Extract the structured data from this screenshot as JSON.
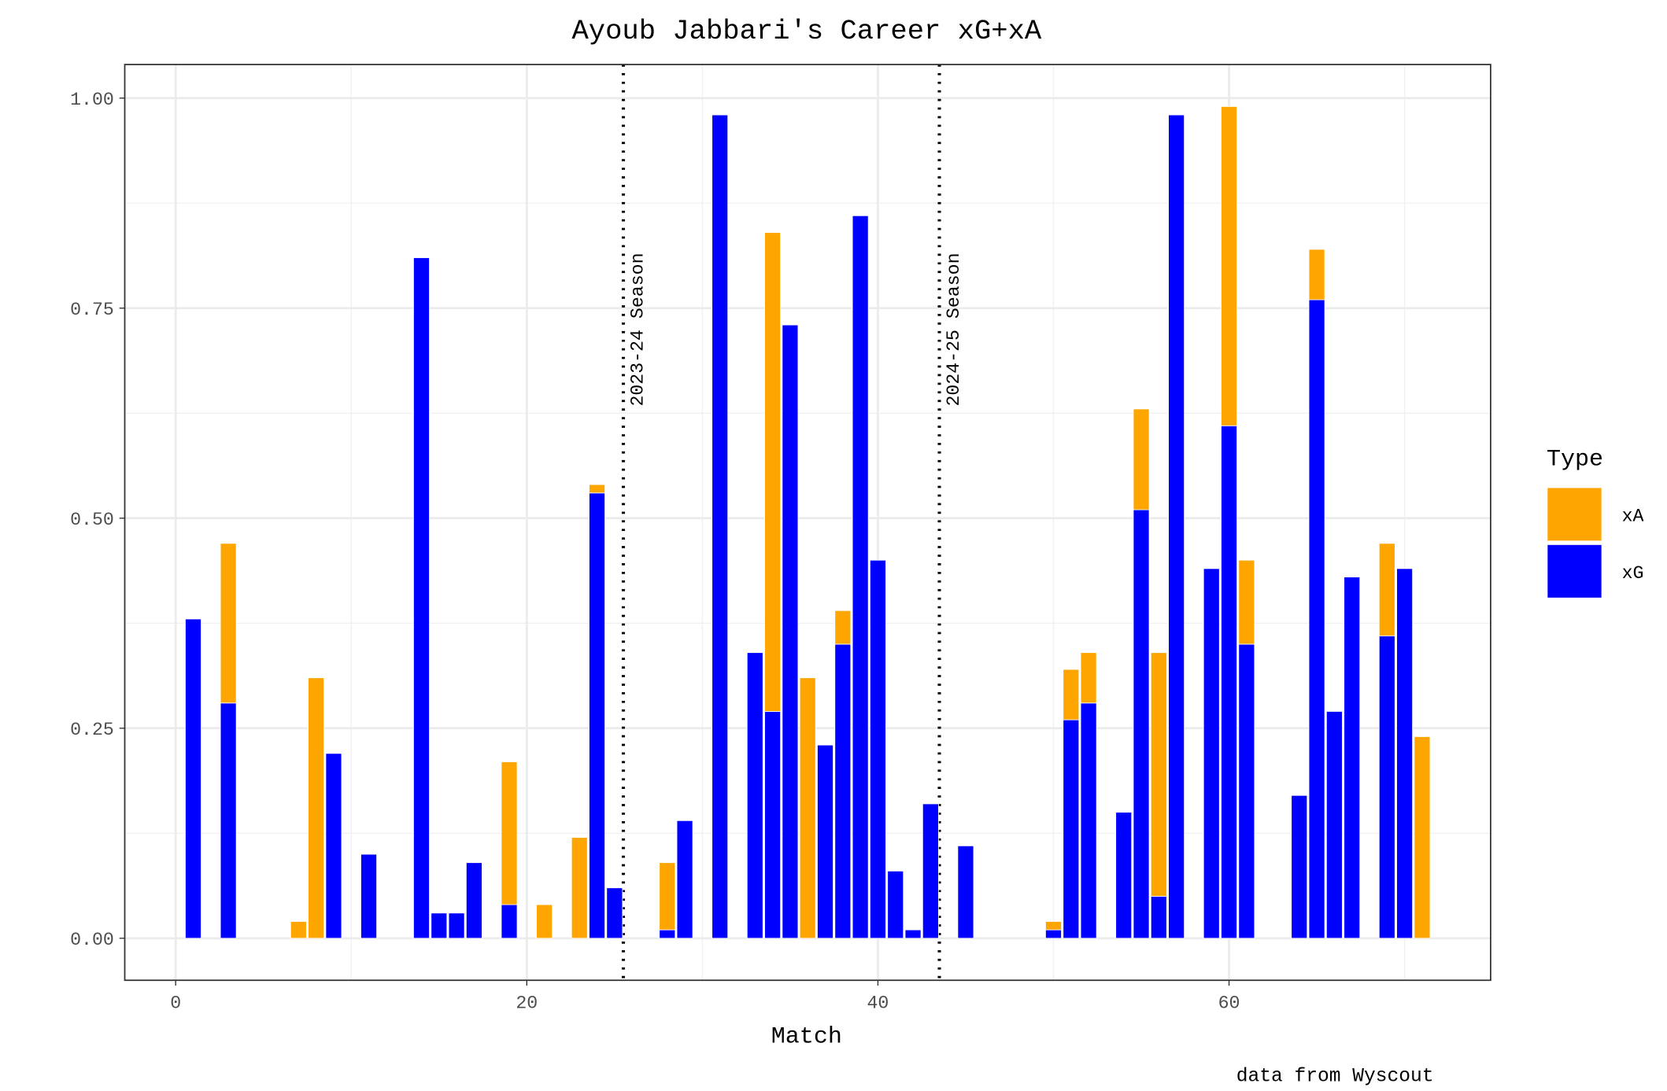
{
  "chart_data": {
    "type": "bar",
    "stacked": true,
    "title": "Ayoub Jabbari's Career xG+xA",
    "xlabel": "Match",
    "ylabel": "",
    "caption": "data from Wyscout",
    "xlim": [
      -2.9,
      74.9
    ],
    "ylim": [
      -0.05,
      1.04
    ],
    "x_ticks": [
      0,
      20,
      40,
      60
    ],
    "x_tick_labels": [
      "0",
      "20",
      "40",
      "60"
    ],
    "y_ticks": [
      0,
      0.25,
      0.5,
      0.75,
      1.0
    ],
    "y_tick_labels": [
      "0.00",
      "0.25",
      "0.50",
      "0.75",
      "1.00"
    ],
    "grid": true,
    "legend": {
      "title": "Type",
      "placement": "right",
      "entries": [
        "xA",
        "xG"
      ]
    },
    "colors": {
      "xA": "#FFA500",
      "xG": "#0000FF"
    },
    "annotations": [
      {
        "x": 25.5,
        "label": "2023-24 Season",
        "style": "dotted vertical line"
      },
      {
        "x": 43.5,
        "label": "2024-25 Season",
        "style": "dotted vertical line"
      }
    ],
    "series": [
      {
        "name": "xG",
        "points": [
          [
            1,
            0.38
          ],
          [
            3,
            0.28
          ],
          [
            7,
            0
          ],
          [
            8,
            0
          ],
          [
            9,
            0.22
          ],
          [
            11,
            0.1
          ],
          [
            14,
            0.81
          ],
          [
            15,
            0.03
          ],
          [
            16,
            0.03
          ],
          [
            17,
            0.09
          ],
          [
            19,
            0.04
          ],
          [
            21,
            0
          ],
          [
            23,
            0
          ],
          [
            24,
            0.53
          ],
          [
            25,
            0.06
          ],
          [
            28,
            0.01
          ],
          [
            29,
            0.14
          ],
          [
            31,
            0.98
          ],
          [
            33,
            0.34
          ],
          [
            34,
            0.27
          ],
          [
            35,
            0.73
          ],
          [
            36,
            0
          ],
          [
            37,
            0.23
          ],
          [
            38,
            0.35
          ],
          [
            39,
            0.86
          ],
          [
            40,
            0.45
          ],
          [
            41,
            0.08
          ],
          [
            42,
            0.01
          ],
          [
            43,
            0.16
          ],
          [
            45,
            0.11
          ],
          [
            50,
            0.01
          ],
          [
            51,
            0.26
          ],
          [
            52,
            0.28
          ],
          [
            54,
            0.15
          ],
          [
            55,
            0.51
          ],
          [
            56,
            0.05
          ],
          [
            57,
            0.98
          ],
          [
            59,
            0.44
          ],
          [
            60,
            0.61
          ],
          [
            61,
            0.35
          ],
          [
            64,
            0.17
          ],
          [
            65,
            0.76
          ],
          [
            66,
            0.27
          ],
          [
            67,
            0.43
          ],
          [
            69,
            0.36
          ],
          [
            70,
            0.44
          ],
          [
            71,
            0
          ]
        ]
      },
      {
        "name": "xA",
        "points": [
          [
            1,
            0
          ],
          [
            3,
            0.19
          ],
          [
            7,
            0.02
          ],
          [
            8,
            0.31
          ],
          [
            9,
            0
          ],
          [
            11,
            0
          ],
          [
            14,
            0
          ],
          [
            15,
            0
          ],
          [
            16,
            0
          ],
          [
            17,
            0
          ],
          [
            19,
            0.17
          ],
          [
            21,
            0.04
          ],
          [
            23,
            0.12
          ],
          [
            24,
            0.01
          ],
          [
            25,
            0
          ],
          [
            28,
            0.08
          ],
          [
            29,
            0
          ],
          [
            31,
            0
          ],
          [
            33,
            0
          ],
          [
            34,
            0.57
          ],
          [
            35,
            0
          ],
          [
            36,
            0.31
          ],
          [
            37,
            0
          ],
          [
            38,
            0.04
          ],
          [
            39,
            0
          ],
          [
            40,
            0
          ],
          [
            41,
            0
          ],
          [
            42,
            0
          ],
          [
            43,
            0
          ],
          [
            45,
            0
          ],
          [
            50,
            0.01
          ],
          [
            51,
            0.06
          ],
          [
            52,
            0.06
          ],
          [
            54,
            0
          ],
          [
            55,
            0.12
          ],
          [
            56,
            0.29
          ],
          [
            57,
            0
          ],
          [
            59,
            0
          ],
          [
            60,
            0.38
          ],
          [
            61,
            0.1
          ],
          [
            64,
            0
          ],
          [
            65,
            0.06
          ],
          [
            66,
            0
          ],
          [
            67,
            0
          ],
          [
            69,
            0.11
          ],
          [
            70,
            0
          ],
          [
            71,
            0.24
          ]
        ]
      }
    ]
  }
}
